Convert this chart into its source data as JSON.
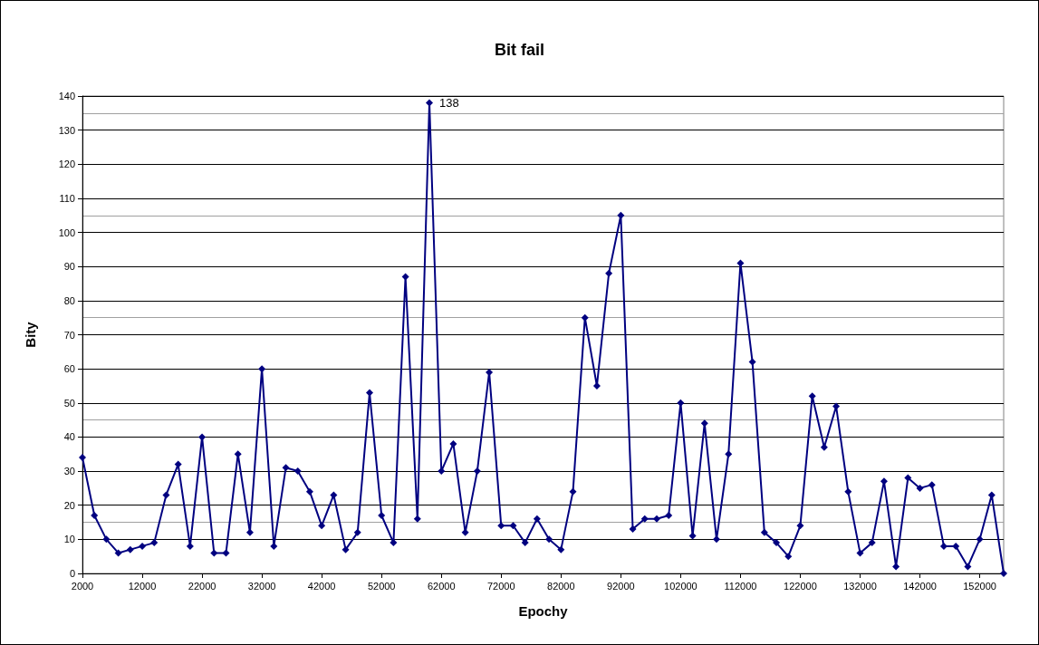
{
  "chart_data": {
    "type": "line",
    "title": "Bit fail",
    "xlabel": "Epochy",
    "ylabel": "Bity",
    "x": [
      2000,
      4000,
      6000,
      8000,
      10000,
      12000,
      14000,
      16000,
      18000,
      20000,
      22000,
      24000,
      26000,
      28000,
      30000,
      32000,
      34000,
      36000,
      38000,
      40000,
      42000,
      44000,
      46000,
      48000,
      50000,
      52000,
      54000,
      56000,
      58000,
      60000,
      62000,
      64000,
      66000,
      68000,
      70000,
      72000,
      74000,
      76000,
      78000,
      80000,
      82000,
      84000,
      86000,
      88000,
      90000,
      92000,
      94000,
      96000,
      98000,
      100000,
      102000,
      104000,
      106000,
      108000,
      110000,
      112000,
      114000,
      116000,
      118000,
      120000,
      122000,
      124000,
      126000,
      128000,
      130000,
      132000,
      134000,
      136000,
      138000,
      140000,
      142000,
      144000,
      146000,
      148000,
      150000,
      152000,
      154000,
      156000
    ],
    "series": [
      {
        "color": "#000080",
        "values": [
          34,
          17,
          10,
          6,
          7,
          8,
          9,
          23,
          32,
          8,
          40,
          6,
          6,
          35,
          12,
          60,
          8,
          31,
          30,
          24,
          14,
          23,
          7,
          12,
          53,
          17,
          9,
          87,
          16,
          138,
          30,
          38,
          12,
          30,
          59,
          14,
          14,
          9,
          16,
          10,
          7,
          24,
          75,
          55,
          88,
          105,
          13,
          16,
          16,
          17,
          50,
          11,
          44,
          10,
          35,
          91,
          62,
          12,
          9,
          5,
          14,
          52,
          37,
          49,
          24,
          6,
          9,
          27,
          2,
          28,
          25,
          26,
          8,
          8,
          2,
          10,
          23,
          0
        ]
      }
    ],
    "annotations": [
      {
        "text": "138",
        "x": 60000,
        "y": 138
      }
    ],
    "xlim": [
      2000,
      156000
    ],
    "xticks": [
      2000,
      12000,
      22000,
      32000,
      42000,
      52000,
      62000,
      72000,
      82000,
      92000,
      102000,
      112000,
      122000,
      132000,
      142000,
      152000
    ],
    "ylim": [
      0,
      140
    ],
    "yticks": [
      0,
      10,
      20,
      30,
      40,
      50,
      60,
      70,
      80,
      90,
      100,
      110,
      120,
      130,
      140
    ],
    "grid": "y",
    "marker": "diamond",
    "line_style": "solid"
  }
}
